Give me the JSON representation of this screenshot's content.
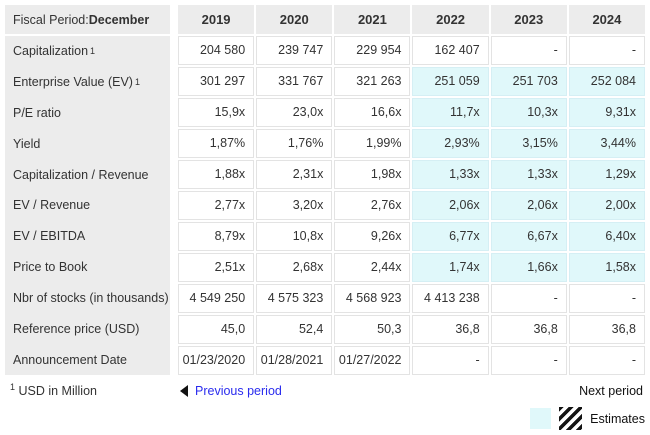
{
  "colors": {
    "gray_bg": "#ececec",
    "estimate_bg": "#e0f8fa",
    "link_blue": "#2a2cee"
  },
  "table": {
    "corner": {
      "label": "Fiscal Period: ",
      "value": "December"
    },
    "years": [
      "2019",
      "2020",
      "2021",
      "2022",
      "2023",
      "2024"
    ],
    "rows": [
      {
        "label": "Capitalization",
        "sup": "1",
        "values": [
          "204 580",
          "239 747",
          "229 954",
          "162 407",
          "-",
          "-"
        ],
        "estimates": [
          false,
          false,
          false,
          false,
          false,
          false
        ]
      },
      {
        "label": "Enterprise Value (EV)",
        "sup": "1",
        "values": [
          "301 297",
          "331 767",
          "321 263",
          "251 059",
          "251 703",
          "252 084"
        ],
        "estimates": [
          false,
          false,
          false,
          true,
          true,
          true
        ]
      },
      {
        "label": "P/E ratio",
        "sup": "",
        "values": [
          "15,9x",
          "23,0x",
          "16,6x",
          "11,7x",
          "10,3x",
          "9,31x"
        ],
        "estimates": [
          false,
          false,
          false,
          true,
          true,
          true
        ]
      },
      {
        "label": "Yield",
        "sup": "",
        "values": [
          "1,87%",
          "1,76%",
          "1,99%",
          "2,93%",
          "3,15%",
          "3,44%"
        ],
        "estimates": [
          false,
          false,
          false,
          true,
          true,
          true
        ]
      },
      {
        "label": "Capitalization / Revenue",
        "sup": "",
        "values": [
          "1,88x",
          "2,31x",
          "1,98x",
          "1,33x",
          "1,33x",
          "1,29x"
        ],
        "estimates": [
          false,
          false,
          false,
          true,
          true,
          true
        ]
      },
      {
        "label": "EV / Revenue",
        "sup": "",
        "values": [
          "2,77x",
          "3,20x",
          "2,76x",
          "2,06x",
          "2,06x",
          "2,00x"
        ],
        "estimates": [
          false,
          false,
          false,
          true,
          true,
          true
        ]
      },
      {
        "label": "EV / EBITDA",
        "sup": "",
        "values": [
          "8,79x",
          "10,8x",
          "9,26x",
          "6,77x",
          "6,67x",
          "6,40x"
        ],
        "estimates": [
          false,
          false,
          false,
          true,
          true,
          true
        ]
      },
      {
        "label": "Price to Book",
        "sup": "",
        "values": [
          "2,51x",
          "2,68x",
          "2,44x",
          "1,74x",
          "1,66x",
          "1,58x"
        ],
        "estimates": [
          false,
          false,
          false,
          true,
          true,
          true
        ]
      },
      {
        "label": "Nbr of stocks (in thousands)",
        "sup": "",
        "values": [
          "4 549 250",
          "4 575 323",
          "4 568 923",
          "4 413 238",
          "-",
          "-"
        ],
        "estimates": [
          false,
          false,
          false,
          false,
          false,
          false
        ]
      },
      {
        "label": "Reference price (USD)",
        "sup": "",
        "values": [
          "45,0",
          "52,4",
          "50,3",
          "36,8",
          "36,8",
          "36,8"
        ],
        "estimates": [
          false,
          false,
          false,
          false,
          false,
          false
        ]
      },
      {
        "label": "Announcement Date",
        "sup": "",
        "values": [
          "01/23/2020",
          "01/28/2021",
          "01/27/2022",
          "-",
          "-",
          "-"
        ],
        "estimates": [
          false,
          false,
          false,
          false,
          false,
          false
        ]
      }
    ]
  },
  "footer": {
    "note_sup": "1",
    "note_text": " USD in Million",
    "previous_label": "Previous period",
    "next_label": "Next period",
    "estimates_label": "Estimates"
  }
}
